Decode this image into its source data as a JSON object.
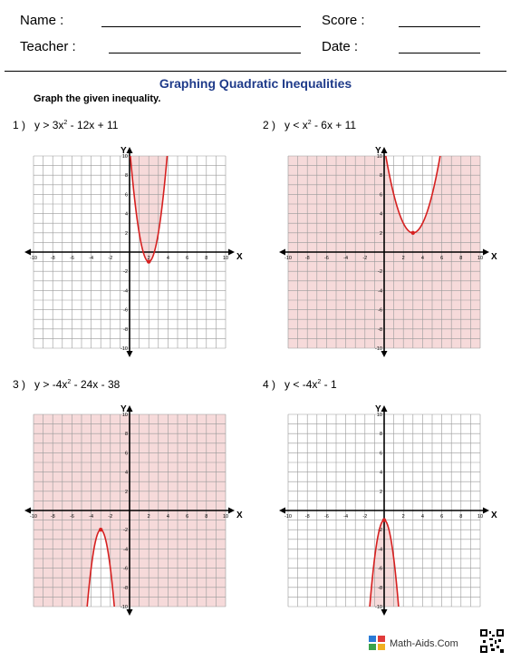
{
  "header": {
    "name_label": "Name :",
    "teacher_label": "Teacher :",
    "score_label": "Score :",
    "date_label": "Date :"
  },
  "title": "Graphing Quadratic Inequalities",
  "instruction": "Graph the given inequality.",
  "problems": [
    {
      "number": "1 )",
      "lhs": "y > 3x",
      "rhs": " - 12x + 11"
    },
    {
      "number": "2 )",
      "lhs": "y < x",
      "rhs": " - 6x + 11"
    },
    {
      "number": "3 )",
      "lhs": "y > -4x",
      "rhs": " - 24x - 38"
    },
    {
      "number": "4 )",
      "lhs": "y < -4x",
      "rhs": " - 1"
    }
  ],
  "exponent": "2",
  "axis": {
    "x_label": "X",
    "y_label": "Y"
  },
  "footer": {
    "brand": "Math-Aids.Com"
  },
  "chart_data": [
    {
      "type": "line",
      "label": "y > 3x² - 12x + 11",
      "a": 3,
      "b": -12,
      "c": 11,
      "shade": "above",
      "xlim": [
        -10,
        10
      ],
      "ylim": [
        -10,
        10
      ]
    },
    {
      "type": "line",
      "label": "y < x² - 6x + 11",
      "a": 1,
      "b": -6,
      "c": 11,
      "shade": "below",
      "xlim": [
        -10,
        10
      ],
      "ylim": [
        -10,
        10
      ]
    },
    {
      "type": "line",
      "label": "y > -4x² - 24x - 38",
      "a": -4,
      "b": -24,
      "c": -38,
      "shade": "above",
      "xlim": [
        -10,
        10
      ],
      "ylim": [
        -10,
        10
      ]
    },
    {
      "type": "line",
      "label": "y < -4x² - 1",
      "a": -4,
      "b": 0,
      "c": -1,
      "shade": "below",
      "xlim": [
        -10,
        10
      ],
      "ylim": [
        -10,
        10
      ]
    }
  ],
  "colors": {
    "curve": "#d62020",
    "shade": "#f6dada",
    "grid": "#9a9a9a",
    "title": "#1f3b8a"
  }
}
